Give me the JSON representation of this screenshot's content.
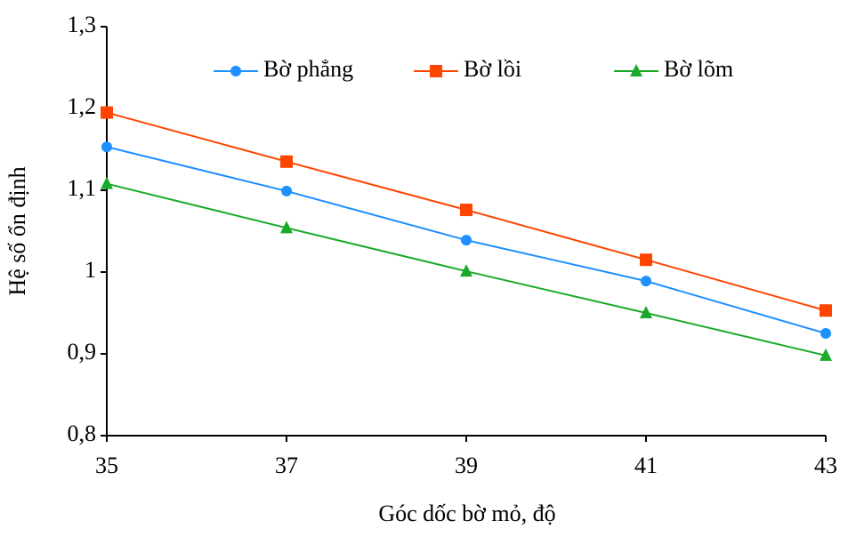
{
  "chart_data": {
    "type": "line",
    "x_label": "Góc dốc bờ mỏ, độ",
    "y_label": "Hệ số ổn định",
    "x": [
      35,
      37,
      39,
      41,
      43
    ],
    "xlim": [
      35,
      43
    ],
    "xticks": [
      35,
      37,
      39,
      41,
      43
    ],
    "ylim": [
      0.8,
      1.3
    ],
    "yticks": [
      {
        "value": 0.8,
        "label": "0,8"
      },
      {
        "value": 0.9,
        "label": "0,9"
      },
      1,
      {
        "value": 1.1,
        "label": "1,1"
      },
      {
        "value": 1.2,
        "label": "1,2"
      },
      {
        "value": 1.3,
        "label": "1,3"
      }
    ],
    "grid": false,
    "legend": "top",
    "series": [
      {
        "name": "Bờ phẳng",
        "color": "#1e90ff",
        "marker": "circle",
        "values": [
          1.153,
          1.099,
          1.039,
          0.989,
          0.925
        ]
      },
      {
        "name": "Bờ lồi",
        "color": "#ff4500",
        "marker": "square",
        "values": [
          1.195,
          1.135,
          1.076,
          1.015,
          0.953
        ]
      },
      {
        "name": "Bờ lõm",
        "color": "#1aaa2a",
        "marker": "triangle",
        "values": [
          1.108,
          1.054,
          1.001,
          0.95,
          0.898
        ]
      }
    ]
  }
}
